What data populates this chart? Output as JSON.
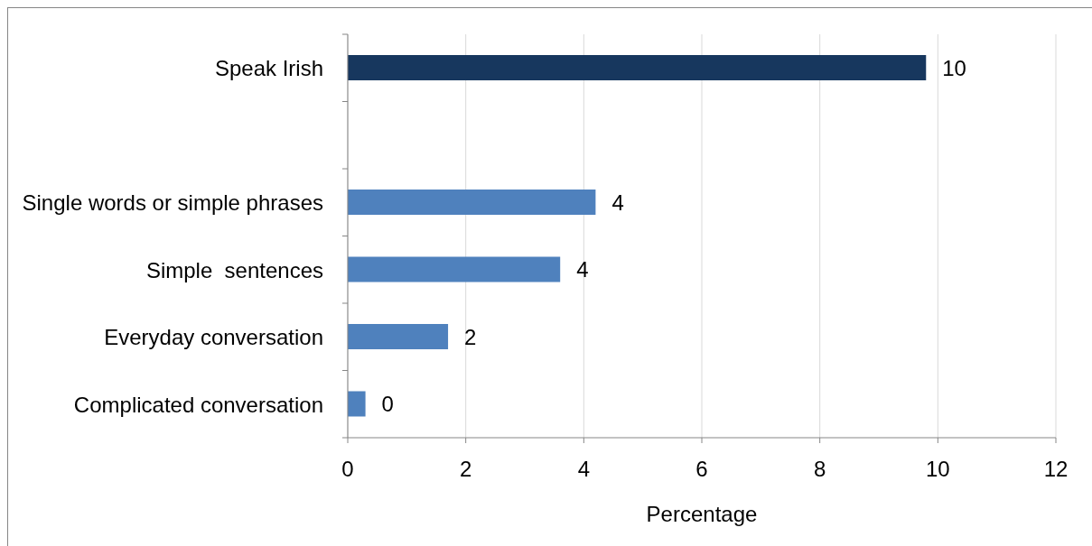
{
  "chart_data": {
    "type": "bar",
    "orientation": "horizontal",
    "categories": [
      "Speak Irish",
      null,
      "Single words or simple phrases",
      "Simple  sentences",
      "Everyday conversation",
      "Complicated conversation"
    ],
    "values": [
      9.8,
      null,
      4.2,
      3.6,
      1.7,
      0.3
    ],
    "colors": [
      "#17375e",
      null,
      "#4f81bd",
      "#4f81bd",
      "#4f81bd",
      "#4f81bd"
    ],
    "value_labels": [
      "10",
      null,
      "4",
      "4",
      "2",
      "0"
    ],
    "xlabel": "Percentage",
    "xlim": [
      0,
      12
    ],
    "xticks": [
      0,
      2,
      4,
      6,
      8,
      10,
      12
    ],
    "grid": "x"
  }
}
